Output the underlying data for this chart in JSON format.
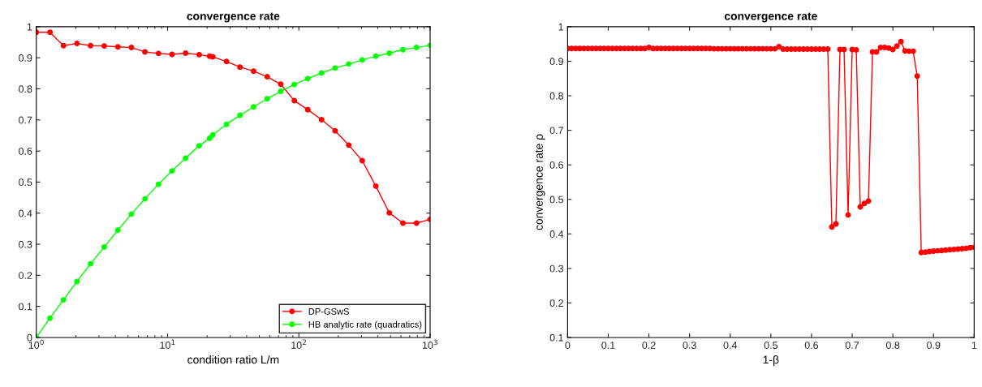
{
  "chart_data": [
    {
      "type": "line",
      "title": "convergence rate",
      "xlabel": "condition ratio L/m",
      "log": "x",
      "xlim": [
        1,
        1000
      ],
      "xticks": [
        {
          "value": 1,
          "label": "10$^{0}$"
        },
        {
          "value": 10,
          "label": "10$^{1}$"
        },
        {
          "value": 100,
          "label": "10$^{2}$"
        },
        {
          "value": 1000,
          "label": "10$^{3}$"
        }
      ],
      "ylim": [
        0,
        1
      ],
      "yticks": [
        0,
        0.1,
        0.2,
        0.3,
        0.4,
        0.5,
        0.6,
        0.7,
        0.8,
        0.9,
        1
      ],
      "grid": false,
      "legend": "bottom right",
      "marker": "circle",
      "line_style": "solid",
      "x": [
        1,
        1.27,
        1.61,
        2.04,
        2.59,
        3.29,
        4.18,
        5.3,
        6.72,
        8.53,
        10.8,
        13.7,
        17.4,
        20.9,
        22.1,
        28.1,
        35.6,
        45.2,
        57.4,
        72.8,
        92.4,
        117,
        149,
        189,
        240,
        304,
        386,
        489,
        621,
        788,
        1000
      ],
      "series": [
        {
          "name": "DP-GSwS",
          "color": "#ff0000",
          "values": [
            0.982,
            0.982,
            0.939,
            0.946,
            0.939,
            0.938,
            0.935,
            0.933,
            0.919,
            0.914,
            0.911,
            0.915,
            0.91,
            0.905,
            0.903,
            0.888,
            0.87,
            0.857,
            0.839,
            0.815,
            0.762,
            0.733,
            0.701,
            0.665,
            0.619,
            0.569,
            0.487,
            0.401,
            0.368,
            0.368,
            0.38
          ]
        },
        {
          "name": "HB analytic rate (quadratics)",
          "color": "#00ff00",
          "values": [
            0,
            0.062,
            0.121,
            0.18,
            0.237,
            0.291,
            0.345,
            0.397,
            0.446,
            0.493,
            0.536,
            0.577,
            0.617,
            0.641,
            0.652,
            0.686,
            0.715,
            0.742,
            0.768,
            0.792,
            0.814,
            0.833,
            0.851,
            0.867,
            0.88,
            0.893,
            0.905,
            0.915,
            0.926,
            0.933,
            0.94
          ]
        }
      ]
    },
    {
      "type": "line",
      "title": "convergence rate",
      "xlabel": "1-β",
      "ylabel": "convergence rate ρ",
      "xlim": [
        0,
        1
      ],
      "xticks": [
        0,
        0.1,
        0.2,
        0.3,
        0.4,
        0.5,
        0.6,
        0.7,
        0.8,
        0.9,
        1
      ],
      "ylim": [
        0.1,
        1
      ],
      "yticks": [
        0.1,
        0.2,
        0.3,
        0.4,
        0.5,
        0.6,
        0.7,
        0.8,
        0.9,
        1
      ],
      "grid": false,
      "marker": "circle",
      "line_style": "solid",
      "x": [
        0,
        0.01,
        0.02,
        0.03,
        0.04,
        0.05,
        0.06,
        0.07,
        0.08,
        0.09,
        0.1,
        0.11,
        0.12,
        0.13,
        0.14,
        0.15,
        0.16,
        0.17,
        0.18,
        0.19,
        0.2,
        0.21,
        0.22,
        0.23,
        0.24,
        0.25,
        0.26,
        0.27,
        0.28,
        0.29,
        0.3,
        0.31,
        0.32,
        0.33,
        0.34,
        0.35,
        0.36,
        0.37,
        0.38,
        0.39,
        0.4,
        0.41,
        0.42,
        0.43,
        0.44,
        0.45,
        0.46,
        0.47,
        0.48,
        0.49,
        0.5,
        0.51,
        0.52,
        0.53,
        0.54,
        0.55,
        0.56,
        0.57,
        0.58,
        0.59,
        0.6,
        0.61,
        0.62,
        0.63,
        0.64,
        0.65,
        0.66,
        0.67,
        0.68,
        0.69,
        0.7,
        0.71,
        0.72,
        0.73,
        0.74,
        0.75,
        0.76,
        0.77,
        0.78,
        0.79,
        0.8,
        0.81,
        0.82,
        0.83,
        0.84,
        0.85,
        0.86,
        0.87,
        0.88,
        0.89,
        0.9,
        0.91,
        0.92,
        0.93,
        0.94,
        0.95,
        0.96,
        0.97,
        0.98,
        0.99,
        1
      ],
      "series": [
        {
          "color": "#ff0000",
          "values": [
            0.937,
            0.937,
            0.937,
            0.937,
            0.937,
            0.937,
            0.937,
            0.937,
            0.937,
            0.937,
            0.937,
            0.937,
            0.937,
            0.937,
            0.937,
            0.937,
            0.937,
            0.937,
            0.937,
            0.937,
            0.94,
            0.937,
            0.937,
            0.937,
            0.937,
            0.937,
            0.937,
            0.937,
            0.937,
            0.937,
            0.937,
            0.937,
            0.937,
            0.937,
            0.937,
            0.937,
            0.936,
            0.936,
            0.936,
            0.936,
            0.936,
            0.936,
            0.936,
            0.936,
            0.936,
            0.936,
            0.936,
            0.936,
            0.936,
            0.936,
            0.936,
            0.936,
            0.942,
            0.935,
            0.935,
            0.935,
            0.935,
            0.935,
            0.935,
            0.935,
            0.935,
            0.935,
            0.935,
            0.935,
            0.935,
            0.42,
            0.429,
            0.934,
            0.934,
            0.455,
            0.934,
            0.933,
            0.478,
            0.488,
            0.495,
            0.927,
            0.927,
            0.94,
            0.94,
            0.938,
            0.934,
            0.944,
            0.957,
            0.93,
            0.929,
            0.929,
            0.857,
            0.346,
            0.347,
            0.349,
            0.35,
            0.351,
            0.352,
            0.353,
            0.354,
            0.355,
            0.356,
            0.357,
            0.358,
            0.36,
            0.361
          ]
        }
      ]
    }
  ]
}
